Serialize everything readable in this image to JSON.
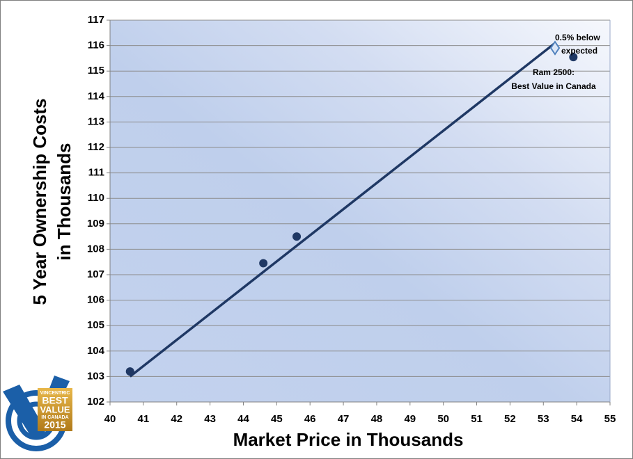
{
  "chart_data": {
    "type": "scatter",
    "x_label": "Market Price in Thousands",
    "y_label": [
      "5 Year Ownership Costs",
      "in Thousands"
    ],
    "xlim": [
      40,
      55
    ],
    "xticks": [
      40,
      41,
      42,
      43,
      44,
      45,
      46,
      47,
      48,
      49,
      50,
      51,
      52,
      53,
      54,
      55
    ],
    "ylim": [
      102,
      117
    ],
    "yticks": [
      102,
      103,
      104,
      105,
      106,
      107,
      108,
      109,
      110,
      111,
      112,
      113,
      114,
      115,
      116,
      117
    ],
    "grid": true,
    "series": [
      {
        "color": "#1f3864",
        "x": [
          40.6,
          44.6,
          45.6,
          53.9
        ],
        "values": [
          103.2,
          107.45,
          108.5,
          115.55
        ]
      }
    ],
    "trendline": {
      "color": "#1f3864",
      "x": [
        40.6,
        53.35
      ],
      "values": [
        103.0,
        116.1
      ]
    },
    "annotations": [
      {
        "lines": [
          "0.5% below",
          "expected"
        ]
      },
      {
        "lines": [
          "Ram 2500:",
          "Best Value in Canada"
        ]
      }
    ]
  },
  "logo": [
    "VINCENTRIC",
    "BEST",
    "VALUE",
    "IN CANADA",
    "2015"
  ]
}
